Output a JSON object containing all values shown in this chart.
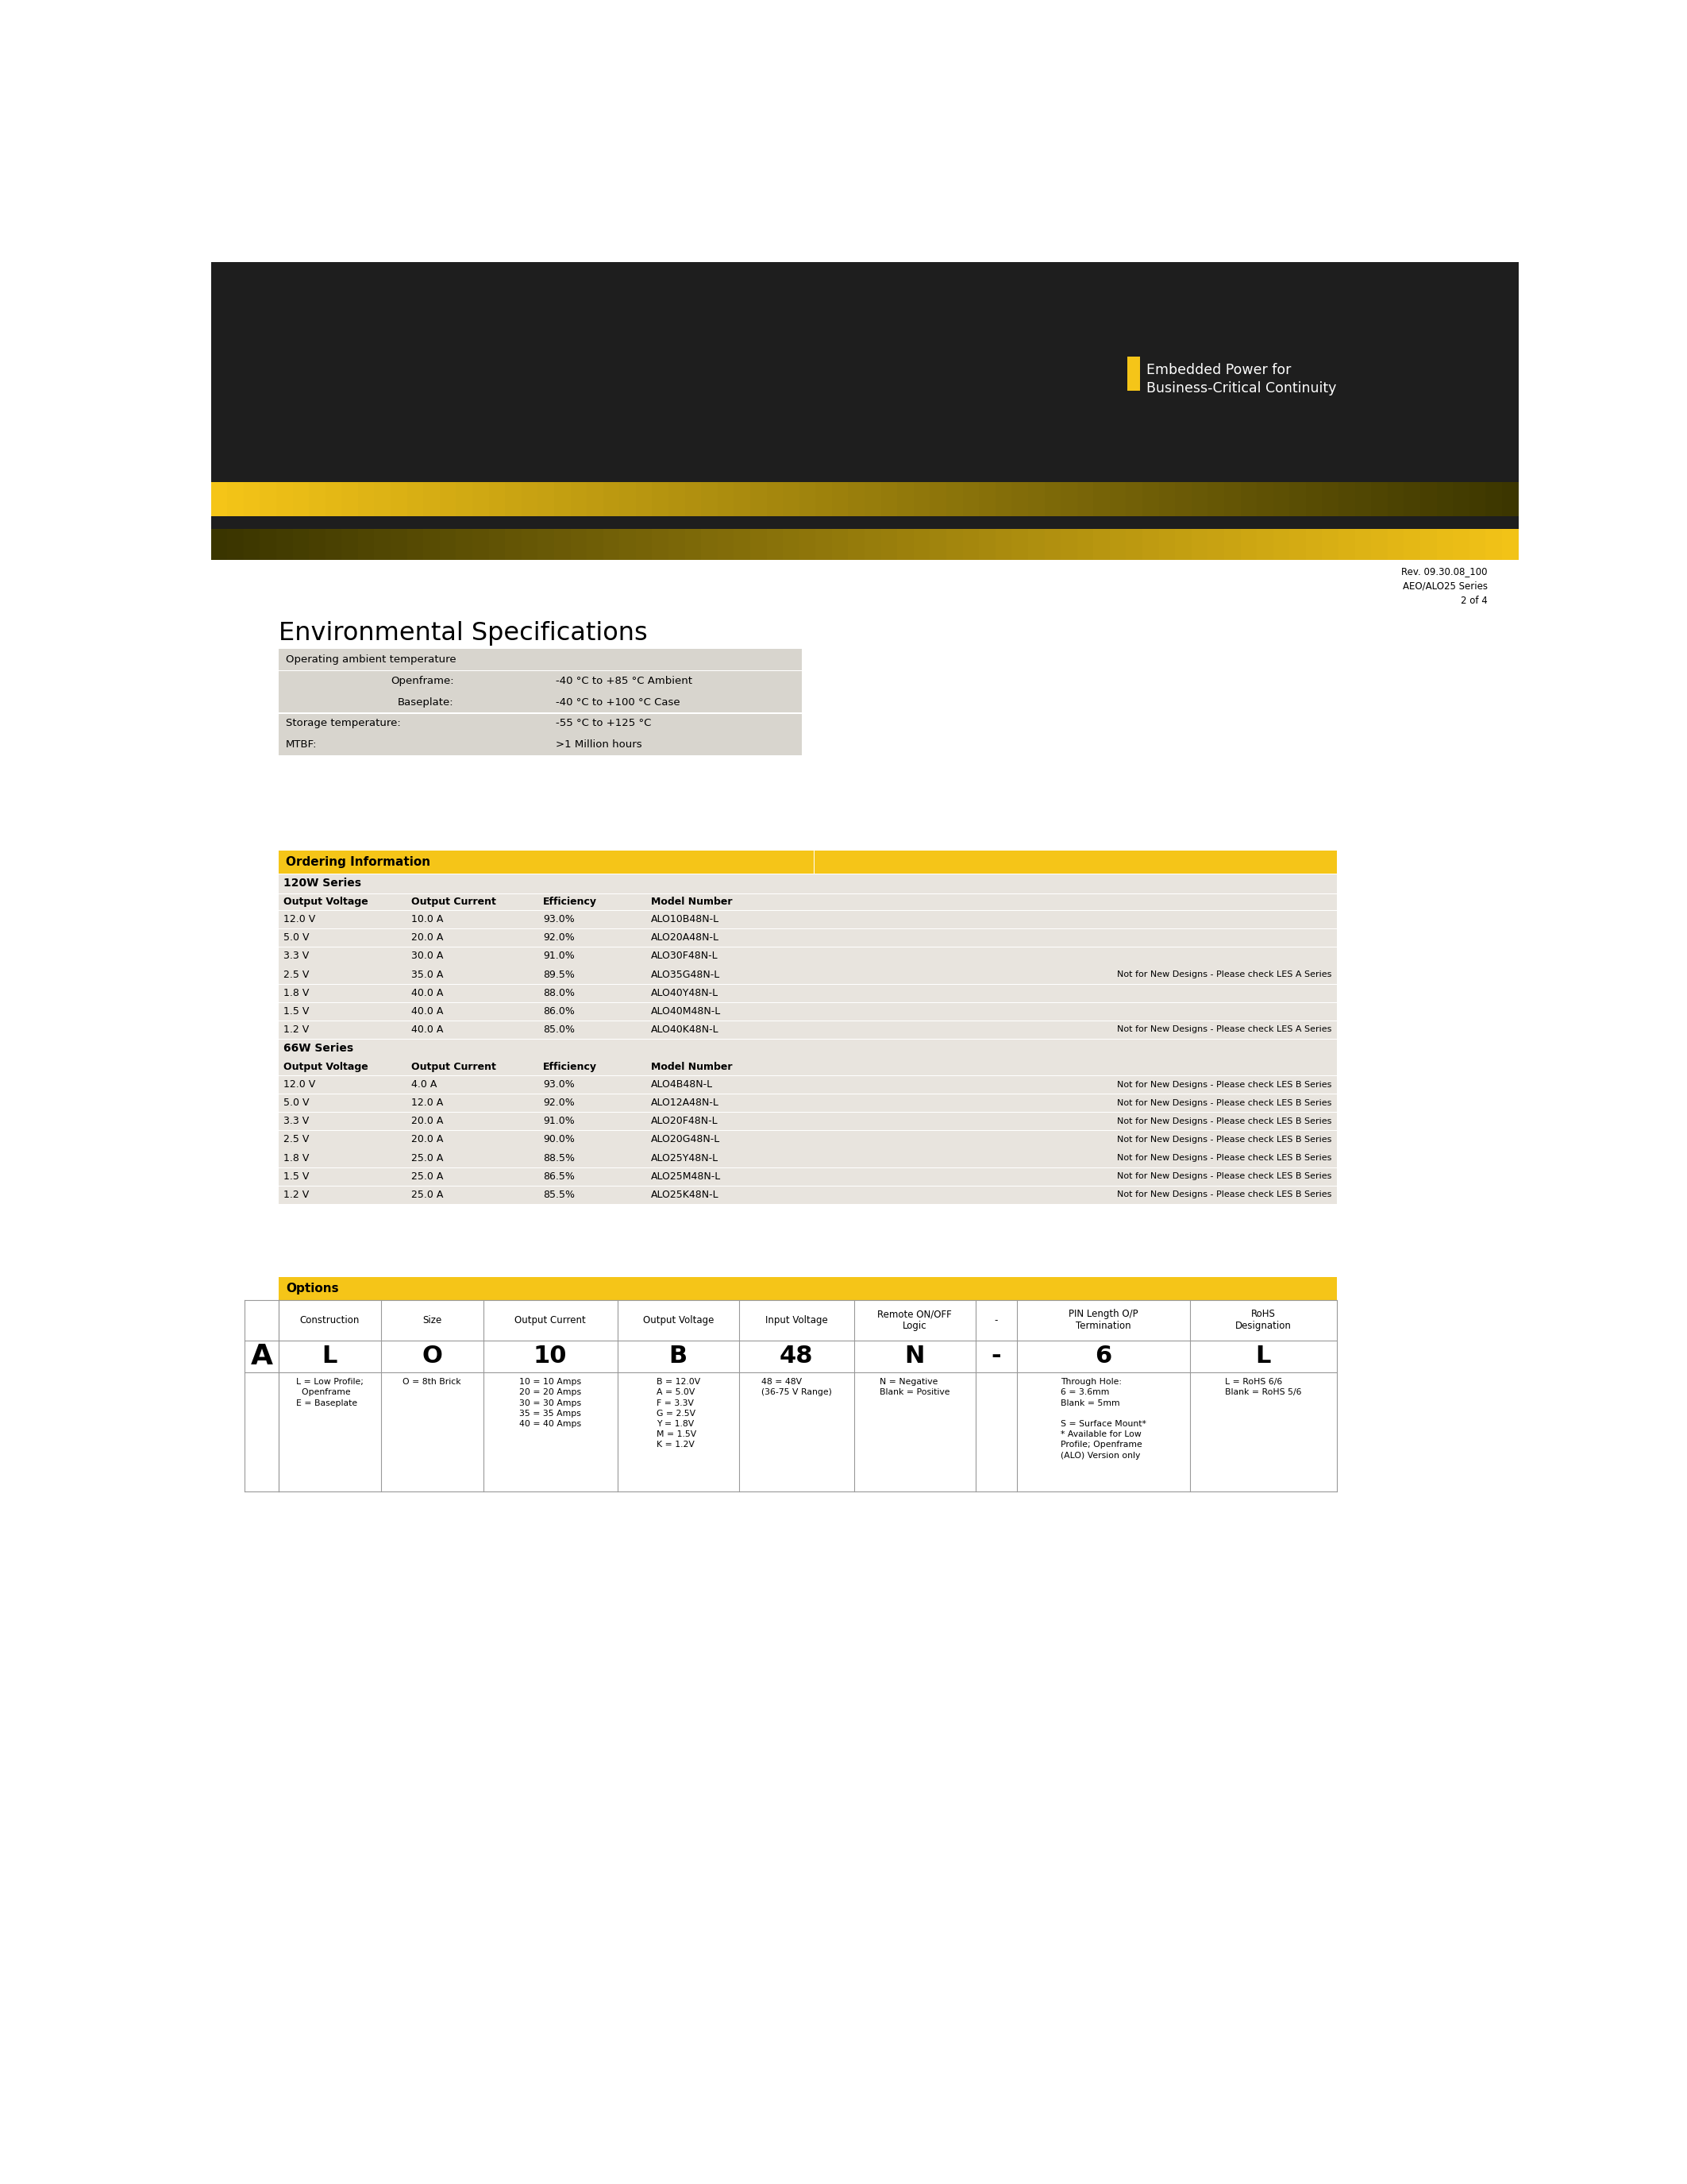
{
  "page_bg": "#ffffff",
  "header_bg": "#1e1e1e",
  "gold_color": "#f5c518",
  "dark_color": "#1e1e1e",
  "logo_text1": "Embedded Power for",
  "logo_text2": "Business-Critical Continuity",
  "logo_square_color": "#f5c518",
  "rev_line1": "Rev. 09.30.08_100",
  "rev_line2": "AEO/ALO25 Series",
  "rev_line3": "2 of 4",
  "env_title": "Environmental Specifications",
  "env_table_bg": "#d8d5ce",
  "env_rows": [
    [
      "Operating ambient temperature",
      "",
      ""
    ],
    [
      "",
      "Openframe:",
      "-40 °C to +85 °C Ambient"
    ],
    [
      "",
      "Baseplate:",
      "-40 °C to +100 °C Case"
    ],
    [
      "Storage temperature:",
      "",
      "-55 °C to +125 °C"
    ],
    [
      "MTBF:",
      "",
      ">1 Million hours"
    ]
  ],
  "ordering_title": "Ordering Information",
  "ordering_header_bg": "#f5c518",
  "ordering_table_bg": "#e8e4de",
  "series_120w": "120W Series",
  "series_66w": "66W Series",
  "col_headers": [
    "Output Voltage",
    "Output Current",
    "Efficiency",
    "Model Number"
  ],
  "rows_120w": [
    [
      "12.0 V",
      "10.0 A",
      "93.0%",
      "ALO10B48N-L",
      ""
    ],
    [
      "5.0 V",
      "20.0 A",
      "92.0%",
      "ALO20A48N-L",
      ""
    ],
    [
      "3.3 V",
      "30.0 A",
      "91.0%",
      "ALO30F48N-L",
      ""
    ],
    [
      "2.5 V",
      "35.0 A",
      "89.5%",
      "ALO35G48N-L",
      "Not for New Designs - Please check LES A Series"
    ],
    [
      "1.8 V",
      "40.0 A",
      "88.0%",
      "ALO40Y48N-L",
      ""
    ],
    [
      "1.5 V",
      "40.0 A",
      "86.0%",
      "ALO40M48N-L",
      ""
    ],
    [
      "1.2 V",
      "40.0 A",
      "85.0%",
      "ALO40K48N-L",
      "Not for New Designs - Please check LES A Series"
    ]
  ],
  "rows_66w": [
    [
      "12.0 V",
      "4.0 A",
      "93.0%",
      "ALO4B48N-L",
      "Not for New Designs - Please check LES B Series"
    ],
    [
      "5.0 V",
      "12.0 A",
      "92.0%",
      "ALO12A48N-L",
      "Not for New Designs - Please check LES B Series"
    ],
    [
      "3.3 V",
      "20.0 A",
      "91.0%",
      "ALO20F48N-L",
      "Not for New Designs - Please check LES B Series"
    ],
    [
      "2.5 V",
      "20.0 A",
      "90.0%",
      "ALO20G48N-L",
      "Not for New Designs - Please check LES B Series"
    ],
    [
      "1.8 V",
      "25.0 A",
      "88.5%",
      "ALO25Y48N-L",
      "Not for New Designs - Please check LES B Series"
    ],
    [
      "1.5 V",
      "25.0 A",
      "86.5%",
      "ALO25M48N-L",
      "Not for New Designs - Please check LES B Series"
    ],
    [
      "1.2 V",
      "25.0 A",
      "85.5%",
      "ALO25K48N-L",
      "Not for New Designs - Please check LES B Series"
    ]
  ],
  "options_title": "Options",
  "options_header_bg": "#f5c518",
  "options_col_headers": [
    "Construction",
    "Size",
    "Output Current",
    "Output Voltage",
    "Input Voltage",
    "Remote ON/OFF\nLogic",
    "-",
    "PIN Length O/P\nTermination",
    "RoHS\nDesignation"
  ],
  "options_row_values": [
    "L",
    "O",
    "10",
    "B",
    "48",
    "N",
    "-",
    "6",
    "L"
  ],
  "options_descriptions": [
    "L = Low Profile;\n  Openframe\nE = Baseplate",
    "O = 8th Brick",
    "10 = 10 Amps\n20 = 20 Amps\n30 = 30 Amps\n35 = 35 Amps\n40 = 40 Amps",
    "B = 12.0V\nA = 5.0V\nF = 3.3V\nG = 2.5V\nY = 1.8V\nM = 1.5V\nK = 1.2V",
    "48 = 48V\n(36-75 V Range)",
    "N = Negative\nBlank = Positive",
    "",
    "Through Hole:\n6 = 3.6mm\nBlank = 5mm\n\nS = Surface Mount*\n* Available for Low\nProfile; Openframe\n(ALO) Version only",
    "L = RoHS 6/6\nBlank = RoHS 5/6"
  ],
  "col_widths_opt": [
    1.6,
    1.6,
    2.1,
    1.9,
    1.8,
    1.9,
    0.65,
    2.7,
    2.3
  ]
}
